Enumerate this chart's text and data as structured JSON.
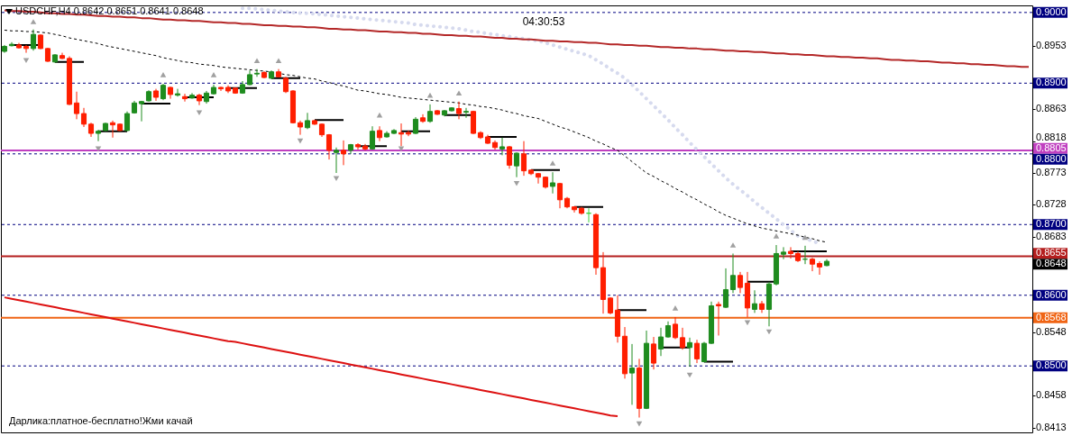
{
  "chart_data": {
    "type": "candlestick",
    "title": "USDCHF,H4 0.8642 0.8651 0.8641 0.8648",
    "categories": [
      null,
      null,
      null,
      null,
      null,
      null,
      null,
      null,
      null,
      null,
      null,
      null,
      null,
      null,
      null,
      null,
      null,
      null,
      null,
      null,
      null,
      null,
      null,
      null,
      null,
      null,
      null,
      null,
      null,
      null,
      null,
      null,
      null,
      null,
      null,
      null,
      null,
      null,
      null,
      null,
      null,
      null,
      null,
      null,
      null,
      null,
      null,
      null,
      null,
      null,
      null,
      null,
      null,
      null,
      null,
      null,
      null,
      null,
      null,
      null,
      null,
      null,
      null,
      null,
      null,
      null,
      null,
      null,
      null,
      null,
      null,
      null,
      null,
      null,
      null,
      null,
      null,
      null,
      null,
      null,
      null,
      null,
      null,
      null,
      null,
      null,
      null,
      null,
      null,
      null,
      null,
      null,
      null,
      null,
      null,
      null,
      null,
      null,
      null,
      null,
      null,
      null,
      null,
      null,
      null,
      null,
      null,
      null,
      null,
      null,
      null,
      null,
      null,
      null,
      null,
      null,
      null,
      null,
      null,
      null,
      null,
      null,
      null,
      null,
      null,
      null,
      null,
      null,
      null,
      null,
      null,
      null,
      null,
      null,
      null,
      null,
      null,
      null,
      null,
      null,
      null,
      null,
      null
    ],
    "ohlc": [
      [
        0.8945,
        0.8954,
        0.8943,
        0.8952
      ],
      [
        0.8953,
        0.8958,
        0.8952,
        0.8955
      ],
      [
        0.8954,
        0.8957,
        0.8949,
        0.895
      ],
      [
        0.8952,
        0.8954,
        0.8943,
        0.8949
      ],
      [
        0.8949,
        0.8976,
        0.8946,
        0.8969
      ],
      [
        0.8968,
        0.8969,
        0.8948,
        0.8949
      ],
      [
        0.8949,
        0.895,
        0.893,
        0.8931
      ],
      [
        0.893,
        0.8941,
        0.8929,
        0.894
      ],
      [
        0.8939,
        0.8943,
        0.8934,
        0.8935
      ],
      [
        0.8935,
        0.8938,
        0.8869,
        0.887
      ],
      [
        0.8872,
        0.8888,
        0.8849,
        0.8857
      ],
      [
        0.8857,
        0.8865,
        0.8838,
        0.8842
      ],
      [
        0.8842,
        0.8844,
        0.8824,
        0.8829
      ],
      [
        0.8829,
        0.8834,
        0.8818,
        0.8832
      ],
      [
        0.8833,
        0.8844,
        0.8832,
        0.8843
      ],
      [
        0.8844,
        0.8847,
        0.8823,
        0.8841
      ],
      [
        0.8842,
        0.8843,
        0.8832,
        0.8833
      ],
      [
        0.8833,
        0.886,
        0.8832,
        0.8857
      ],
      [
        0.8858,
        0.8875,
        0.8857,
        0.8872
      ],
      [
        0.8871,
        0.8875,
        0.8846,
        0.8874
      ],
      [
        0.8875,
        0.889,
        0.8874,
        0.8888
      ],
      [
        0.8889,
        0.8892,
        0.8875,
        0.888
      ],
      [
        0.8878,
        0.8899,
        0.8876,
        0.8897
      ],
      [
        0.8894,
        0.8895,
        0.8878,
        0.8884
      ],
      [
        0.8883,
        0.8892,
        0.8881,
        0.8885
      ],
      [
        0.8881,
        0.8885,
        0.8874,
        0.8878
      ],
      [
        0.8879,
        0.8886,
        0.8878,
        0.8883
      ],
      [
        0.8883,
        0.8885,
        0.8869,
        0.8875
      ],
      [
        0.8874,
        0.8889,
        0.8871,
        0.8886
      ],
      [
        0.8885,
        0.8898,
        0.8884,
        0.8894
      ],
      [
        0.8894,
        0.8895,
        0.8889,
        0.8892
      ],
      [
        0.8894,
        0.8897,
        0.8886,
        0.8889
      ],
      [
        0.8893,
        0.8894,
        0.8885,
        0.8886
      ],
      [
        0.8886,
        0.8903,
        0.8885,
        0.8898
      ],
      [
        0.8898,
        0.8918,
        0.8897,
        0.8912
      ],
      [
        0.8913,
        0.892,
        0.8909,
        0.8914
      ],
      [
        0.8915,
        0.8917,
        0.8907,
        0.8908
      ],
      [
        0.8907,
        0.8918,
        0.8906,
        0.8916
      ],
      [
        0.8916,
        0.892,
        0.8908,
        0.8909
      ],
      [
        0.8907,
        0.8909,
        0.8886,
        0.8888
      ],
      [
        0.8889,
        0.889,
        0.8843,
        0.8844
      ],
      [
        0.8844,
        0.8847,
        0.8827,
        0.8838
      ],
      [
        0.8837,
        0.8858,
        0.8835,
        0.8847
      ],
      [
        0.8847,
        0.8848,
        0.8841,
        0.8842
      ],
      [
        0.8842,
        0.8843,
        0.8824,
        0.8827
      ],
      [
        0.8827,
        0.8828,
        0.8792,
        0.8805
      ],
      [
        0.8802,
        0.8809,
        0.8773,
        0.8805
      ],
      [
        0.8805,
        0.8819,
        0.8784,
        0.88
      ],
      [
        0.8805,
        0.8814,
        0.88,
        0.8813
      ],
      [
        0.8813,
        0.8815,
        0.8806,
        0.881
      ],
      [
        0.8811,
        0.8814,
        0.8805,
        0.8807
      ],
      [
        0.8807,
        0.8839,
        0.8806,
        0.8832
      ],
      [
        0.8833,
        0.8839,
        0.8818,
        0.8823
      ],
      [
        0.8824,
        0.8832,
        0.8823,
        0.8829
      ],
      [
        0.8829,
        0.8835,
        0.8828,
        0.8833
      ],
      [
        0.883,
        0.8843,
        0.8811,
        0.8828
      ],
      [
        0.883,
        0.8833,
        0.8825,
        0.8828
      ],
      [
        0.8829,
        0.8852,
        0.8828,
        0.8849
      ],
      [
        0.8851,
        0.8856,
        0.8844,
        0.8846
      ],
      [
        0.8846,
        0.887,
        0.8844,
        0.886
      ],
      [
        0.8861,
        0.8862,
        0.8855,
        0.8856
      ],
      [
        0.8855,
        0.8862,
        0.8853,
        0.8861
      ],
      [
        0.8861,
        0.8866,
        0.886,
        0.8865
      ],
      [
        0.8864,
        0.8874,
        0.8849,
        0.8857
      ],
      [
        0.8859,
        0.8865,
        0.8851,
        0.886
      ],
      [
        0.886,
        0.8861,
        0.8828,
        0.8829
      ],
      [
        0.883,
        0.8832,
        0.8821,
        0.8823
      ],
      [
        0.8824,
        0.8827,
        0.8814,
        0.8815
      ],
      [
        0.8816,
        0.8819,
        0.8806,
        0.8809
      ],
      [
        0.8807,
        0.8823,
        0.8798,
        0.881
      ],
      [
        0.881,
        0.8811,
        0.8779,
        0.8784
      ],
      [
        0.8783,
        0.8802,
        0.8767,
        0.8801
      ],
      [
        0.88,
        0.8818,
        0.8769,
        0.8776
      ],
      [
        0.8777,
        0.8778,
        0.877,
        0.8772
      ],
      [
        0.8772,
        0.8773,
        0.8758,
        0.8767
      ],
      [
        0.8767,
        0.8768,
        0.8751,
        0.8753
      ],
      [
        0.8754,
        0.8774,
        0.8744,
        0.8759
      ],
      [
        0.8758,
        0.8759,
        0.8723,
        0.8735
      ],
      [
        0.8737,
        0.8739,
        0.8723,
        0.8725
      ],
      [
        0.8725,
        0.8726,
        0.8717,
        0.8721
      ],
      [
        0.8723,
        0.8725,
        0.8714,
        0.8716
      ],
      [
        0.8716,
        0.8723,
        0.8703,
        0.8716
      ],
      [
        0.8714,
        0.8716,
        0.8629,
        0.8639
      ],
      [
        0.8639,
        0.8661,
        0.8574,
        0.8594
      ],
      [
        0.8596,
        0.8597,
        0.8573,
        0.8575
      ],
      [
        0.8579,
        0.86,
        0.8533,
        0.8542
      ],
      [
        0.8542,
        0.8555,
        0.8482,
        0.8489
      ],
      [
        0.849,
        0.8531,
        0.8445,
        0.8497
      ],
      [
        0.8497,
        0.851,
        0.8427,
        0.844
      ],
      [
        0.844,
        0.855,
        0.8439,
        0.8532
      ],
      [
        0.8531,
        0.8541,
        0.8495,
        0.8504
      ],
      [
        0.8524,
        0.8554,
        0.8514,
        0.8541
      ],
      [
        0.8541,
        0.8563,
        0.854,
        0.8557
      ],
      [
        0.8559,
        0.8569,
        0.8538,
        0.854
      ],
      [
        0.854,
        0.8554,
        0.8523,
        0.8526
      ],
      [
        0.8526,
        0.854,
        0.8499,
        0.8533
      ],
      [
        0.8532,
        0.8537,
        0.8504,
        0.851
      ],
      [
        0.8506,
        0.8534,
        0.8505,
        0.8532
      ],
      [
        0.8532,
        0.8591,
        0.8531,
        0.8585
      ],
      [
        0.8587,
        0.8591,
        0.8543,
        0.8585
      ],
      [
        0.8583,
        0.8638,
        0.8582,
        0.8608
      ],
      [
        0.8608,
        0.8659,
        0.8603,
        0.8628
      ],
      [
        0.8628,
        0.8633,
        0.8603,
        0.8611
      ],
      [
        0.8617,
        0.8633,
        0.8569,
        0.8582
      ],
      [
        0.858,
        0.8607,
        0.8575,
        0.8588
      ],
      [
        0.8588,
        0.8592,
        0.8575,
        0.858
      ],
      [
        0.858,
        0.8619,
        0.8556,
        0.8616
      ],
      [
        0.8616,
        0.8671,
        0.8614,
        0.8659
      ],
      [
        0.8658,
        0.8668,
        0.8651,
        0.8661
      ],
      [
        0.8662,
        0.8668,
        0.8652,
        0.8659
      ],
      [
        0.8659,
        0.8662,
        0.8647,
        0.8649
      ],
      [
        0.8651,
        0.867,
        0.8644,
        0.8651
      ],
      [
        0.8651,
        0.8653,
        0.8634,
        0.8644
      ],
      [
        0.8645,
        0.8648,
        0.8629,
        0.864
      ],
      [
        0.8642,
        0.8651,
        0.8641,
        0.8648
      ],
      null,
      null,
      null,
      null,
      null,
      null,
      null,
      null,
      null,
      null,
      null,
      null,
      null,
      null,
      null,
      null,
      null,
      null,
      null,
      null,
      null,
      null,
      null,
      null,
      null,
      null,
      null,
      null
    ],
    "colors": [
      "#1e8c1e",
      "#1e8c1e",
      "#ff1e00",
      "#ff1e00",
      "#1e8c1e",
      "#ff1e00",
      "#ff1e00",
      "#1e8c1e",
      "#ff1e00",
      "#ff1e00",
      "#ff1e00",
      "#ff1e00",
      "#ff1e00",
      "#1e8c1e",
      "#1e8c1e",
      "#ff1e00",
      "#ff1e00",
      "#1e8c1e",
      "#1e8c1e",
      "#1e8c1e",
      "#1e8c1e",
      "#ff1e00",
      "#1e8c1e",
      "#ff1e00",
      "#1e8c1e",
      "#ff1e00",
      "#1e8c1e",
      "#ff1e00",
      "#1e8c1e",
      "#1e8c1e",
      "#ff1e00",
      "#ff1e00",
      "#ff1e00",
      "#1e8c1e",
      "#1e8c1e",
      "#1e8c1e",
      "#ff1e00",
      "#1e8c1e",
      "#ff1e00",
      "#ff1e00",
      "#ff1e00",
      "#ff1e00",
      "#1e8c1e",
      "#ff1e00",
      "#ff1e00",
      "#ff1e00",
      "#1e8c1e",
      "#ff1e00",
      "#1e8c1e",
      "#ff1e00",
      "#ff1e00",
      "#1e8c1e",
      "#ff1e00",
      "#1e8c1e",
      "#1e8c1e",
      "#ff1e00",
      "#ff1e00",
      "#1e8c1e",
      "#ff1e00",
      "#1e8c1e",
      "#ff1e00",
      "#1e8c1e",
      "#1e8c1e",
      "#ff1e00",
      "#1e8c1e",
      "#ff1e00",
      "#ff1e00",
      "#ff1e00",
      "#ff1e00",
      "#1e8c1e",
      "#ff1e00",
      "#1e8c1e",
      "#ff1e00",
      "#ff1e00",
      "#ff1e00",
      "#ff1e00",
      "#1e8c1e",
      "#ff1e00",
      "#ff1e00",
      "#ff1e00",
      "#ff1e00",
      "#3cd23c",
      "#ff1e00",
      "#ff1e00",
      "#ff1e00",
      "#ff1e00",
      "#ff1e00",
      "#1e8c1e",
      "#ff1e00",
      "#1e8c1e",
      "#ff1e00",
      "#1e8c1e",
      "#1e8c1e",
      "#ff1e00",
      "#ff1e00",
      "#1e8c1e",
      "#ff1e00",
      "#1e8c1e",
      "#1e8c1e",
      "#ff1e00",
      "#1e8c1e",
      "#1e8c1e",
      "#ff1e00",
      "#ff1e00",
      "#1e8c1e",
      "#ff1e00",
      "#1e8c1e",
      "#1e8c1e",
      "#1e8c1e",
      "#ff1e00",
      "#ff1e00",
      "#1e8c1e",
      "#ff1e00",
      "#ff1e00",
      "#1e8c1e",
      null,
      null,
      null,
      null,
      null,
      null,
      null,
      null,
      null,
      null,
      null,
      null,
      null,
      null,
      null,
      null,
      null,
      null,
      null,
      null,
      null,
      null,
      null,
      null,
      null,
      null,
      null,
      null
    ],
    "series": [
      {
        "type": "line",
        "color": "#d6daee",
        "line_style": "dotted",
        "values": [
          null,
          null,
          null,
          null,
          null,
          null,
          null,
          null,
          null,
          null,
          null,
          null,
          null,
          null,
          null,
          null,
          null,
          null,
          null,
          null,
          null,
          null,
          null,
          null,
          null,
          null,
          null,
          null,
          null,
          null,
          null,
          null,
          null,
          0.9006,
          0.9006,
          0.9005,
          0.9004,
          0.9003,
          0.9002,
          0.9001,
          0.9,
          0.8999,
          0.8999,
          0.8998,
          0.8997,
          0.8996,
          0.8995,
          0.8994,
          0.8993,
          0.8992,
          0.8991,
          0.899,
          0.8989,
          0.8988,
          0.8987,
          0.8986,
          0.8985,
          0.8983,
          0.8982,
          0.8981,
          0.898,
          0.8979,
          0.8978,
          0.8977,
          0.8975,
          0.8973,
          0.8972,
          0.897,
          0.8969,
          0.8967,
          0.8966,
          0.8964,
          0.8963,
          0.8961,
          0.896,
          0.8957,
          0.8954,
          0.8951,
          0.8948,
          0.8945,
          0.8942,
          0.8939,
          0.8933,
          0.8927,
          0.892,
          0.8914,
          0.8907,
          0.8898,
          0.8888,
          0.8878,
          0.8868,
          0.8858,
          0.8848,
          0.8837,
          0.8827,
          0.8816,
          0.8806,
          0.8796,
          0.8786,
          0.8776,
          0.8766,
          0.8757,
          0.8749,
          0.8741,
          0.8732,
          0.8724,
          0.8716,
          0.8708,
          0.87,
          0.8692,
          0.8684,
          0.868,
          0.8677,
          0.8673,
          null,
          null,
          null,
          null,
          null,
          null,
          null,
          null,
          null,
          null,
          null,
          null,
          null,
          null,
          null,
          null,
          null,
          null,
          null,
          null,
          null,
          null,
          null,
          null,
          null,
          null,
          null,
          null,
          null
        ]
      },
      {
        "type": "line",
        "color": "#000000",
        "line_style": "dashed",
        "values": [
          0.8975,
          0.8974,
          0.8974,
          0.8973,
          0.8973,
          0.8972,
          0.8971,
          0.8969,
          0.8967,
          0.8964,
          0.8962,
          0.896,
          0.8958,
          0.8956,
          0.8953,
          0.8951,
          0.8949,
          0.8947,
          0.8945,
          0.8943,
          0.8941,
          0.8939,
          0.8936,
          0.8934,
          0.8932,
          0.893,
          0.8929,
          0.8927,
          0.8926,
          0.8925,
          0.8923,
          0.8922,
          0.8921,
          0.892,
          0.8919,
          0.8918,
          0.8917,
          0.8916,
          0.8914,
          0.8912,
          0.8911,
          0.8909,
          0.8907,
          0.8906,
          0.8903,
          0.8901,
          0.8898,
          0.8896,
          0.8893,
          0.889,
          0.8889,
          0.8887,
          0.8885,
          0.8884,
          0.8882,
          0.888,
          0.8879,
          0.8878,
          0.8877,
          0.8876,
          0.8875,
          0.8874,
          0.8873,
          0.8872,
          0.887,
          0.8869,
          0.8867,
          0.8866,
          0.8864,
          0.8862,
          0.8859,
          0.8857,
          0.8854,
          0.8852,
          0.885,
          0.8846,
          0.8842,
          0.8838,
          0.8835,
          0.8831,
          0.8827,
          0.8823,
          0.8818,
          0.8814,
          0.8809,
          0.8805,
          0.8797,
          0.8789,
          0.8781,
          0.8773,
          0.8768,
          0.8762,
          0.8757,
          0.8751,
          0.8746,
          0.874,
          0.8735,
          0.8729,
          0.8724,
          0.8718,
          0.8713,
          0.8709,
          0.8705,
          0.8701,
          0.8698,
          0.8695,
          0.8693,
          0.8691,
          0.8689,
          0.8687,
          0.8685,
          0.8682,
          0.868,
          0.8677,
          0.8675,
          null,
          null,
          null,
          null,
          null,
          null,
          null,
          null,
          null,
          null,
          null,
          null,
          null,
          null,
          null,
          null,
          null,
          null,
          null,
          null,
          null,
          null,
          null,
          null,
          null,
          null,
          null,
          null
        ]
      },
      {
        "type": "line",
        "color": "#b42828",
        "values": [
          0.9003,
          0.9002,
          0.9002,
          0.9001,
          0.9001,
          0.9,
          0.8999,
          0.8999,
          0.8998,
          0.8998,
          0.8997,
          0.8997,
          0.8996,
          0.8995,
          0.8995,
          0.8994,
          0.8994,
          0.8993,
          0.8993,
          0.8992,
          0.8992,
          0.8991,
          0.899,
          0.899,
          0.8989,
          0.8989,
          0.8988,
          0.8988,
          0.8987,
          0.8986,
          0.8986,
          0.8985,
          0.8985,
          0.8984,
          0.8984,
          0.8983,
          0.8982,
          0.8982,
          0.8981,
          0.8981,
          0.898,
          0.898,
          0.8979,
          0.8979,
          0.8978,
          0.8977,
          0.8977,
          0.8976,
          0.8976,
          0.8975,
          0.8975,
          0.8974,
          0.8973,
          0.8973,
          0.8972,
          0.8972,
          0.8971,
          0.8971,
          0.897,
          0.897,
          0.8969,
          0.8968,
          0.8968,
          0.8967,
          0.8967,
          0.8966,
          0.8966,
          0.8965,
          0.8964,
          0.8964,
          0.8963,
          0.8963,
          0.8962,
          0.8962,
          0.8961,
          0.896,
          0.896,
          0.8959,
          0.8959,
          0.8958,
          0.8958,
          0.8957,
          0.8957,
          0.8956,
          0.8955,
          0.8955,
          0.8954,
          0.8954,
          0.8953,
          0.8953,
          0.8952,
          0.8951,
          0.8951,
          0.895,
          0.895,
          0.8949,
          0.8949,
          0.8948,
          0.8948,
          0.8947,
          0.8946,
          0.8946,
          0.8945,
          0.8945,
          0.8944,
          0.8944,
          0.8943,
          0.8942,
          0.8942,
          0.8941,
          0.8941,
          0.894,
          0.894,
          0.8939,
          0.8938,
          0.8938,
          0.8937,
          0.8937,
          0.8936,
          0.8936,
          0.8935,
          0.8935,
          0.8934,
          0.8933,
          0.8933,
          0.8932,
          0.8932,
          0.8931,
          0.8931,
          0.893,
          0.8929,
          0.8929,
          0.8928,
          0.8928,
          0.8927,
          0.8927,
          0.8926,
          0.8926,
          0.8925,
          0.8924,
          0.8924,
          0.8923,
          0.8923
        ]
      },
      {
        "type": "line",
        "color": "#dd1111",
        "values": [
          0.8597,
          0.8595,
          0.8593,
          0.8591,
          0.8589,
          0.8587,
          0.8585,
          0.8583,
          0.8581,
          0.8579,
          0.8577,
          0.8575,
          0.8573,
          0.8571,
          0.8569,
          0.8567,
          0.8565,
          0.8563,
          0.8561,
          0.8559,
          0.8557,
          0.8555,
          0.8553,
          0.8551,
          0.8549,
          0.8547,
          0.8545,
          0.8543,
          0.8541,
          0.8539,
          0.8537,
          0.8535,
          0.8534,
          0.8532,
          0.853,
          0.8528,
          0.8526,
          0.8524,
          0.8522,
          0.852,
          0.8518,
          0.8516,
          0.8514,
          0.8512,
          0.851,
          0.8508,
          0.8506,
          0.8504,
          0.8502,
          0.85,
          0.8498,
          0.8496,
          0.8494,
          0.8492,
          0.849,
          0.8488,
          0.8486,
          0.8484,
          0.8482,
          0.848,
          0.8478,
          0.8476,
          0.8474,
          0.8472,
          0.847,
          0.8468,
          0.8466,
          0.8464,
          0.8462,
          0.846,
          0.8458,
          0.8456,
          0.8454,
          0.8452,
          0.845,
          0.8448,
          0.8446,
          0.8444,
          0.8442,
          0.844,
          0.8438,
          0.8436,
          0.8434,
          0.8432,
          0.843,
          0.8429,
          null,
          null,
          null,
          null,
          null,
          null,
          null,
          null,
          null,
          null,
          null,
          null,
          null,
          null,
          null,
          null,
          null,
          null,
          null,
          null,
          null,
          null,
          null,
          null,
          null,
          null,
          null,
          null,
          null,
          null,
          null,
          null,
          null,
          null,
          null,
          null,
          null,
          null,
          null,
          null,
          null,
          null,
          null,
          null,
          null,
          null,
          null,
          null,
          null,
          null,
          null,
          null,
          null,
          null,
          null,
          null,
          null
        ]
      },
      {
        "type": "line",
        "color": "#000000",
        "values": [
          null,
          0.8954,
          0.8954,
          0.8954,
          0.8954,
          0.8954,
          null,
          0.893,
          0.893,
          0.893,
          0.893,
          0.893,
          null,
          0.8832,
          0.8832,
          0.8832,
          0.8832,
          0.8832,
          null,
          0.8871,
          0.8871,
          0.8871,
          0.8871,
          0.8871,
          null,
          0.888,
          0.888,
          0.888,
          0.888,
          0.888,
          null,
          0.8893,
          0.8893,
          0.8893,
          0.8893,
          0.8893,
          null,
          0.8907,
          0.8907,
          0.8907,
          0.8907,
          0.8907,
          null,
          0.8848,
          0.8848,
          0.8848,
          0.8848,
          0.8848,
          null,
          0.8811,
          0.8811,
          0.8811,
          0.8811,
          0.8811,
          null,
          0.8832,
          0.8832,
          0.8832,
          0.8832,
          0.8832,
          null,
          0.8855,
          0.8855,
          0.8855,
          0.8855,
          0.8855,
          null,
          0.8824,
          0.8824,
          0.8824,
          0.8824,
          0.8824,
          null,
          0.8777,
          0.8777,
          0.8777,
          0.8777,
          0.8777,
          null,
          0.8725,
          0.8725,
          0.8725,
          0.8725,
          0.8725,
          null,
          0.8579,
          0.8579,
          0.8579,
          0.8579,
          0.8579,
          null,
          0.8526,
          0.8526,
          0.8526,
          0.8526,
          0.8526,
          null,
          0.8506,
          0.8506,
          0.8506,
          0.8506,
          0.8506,
          null,
          0.8619,
          0.8619,
          0.8619,
          0.8619,
          0.8619,
          null,
          0.8662,
          0.8662,
          0.8662,
          0.8662,
          0.8662,
          0.8662,
          null,
          null,
          null,
          null,
          null,
          null,
          null,
          null,
          null,
          null,
          null,
          null,
          null,
          null,
          null,
          null,
          null,
          null,
          null,
          null,
          null,
          null,
          null,
          null,
          null,
          null,
          null,
          null
        ]
      },
      {
        "type": "scatter",
        "color": "#a0a0a0",
        "marker": "triangle",
        "values": [
          null,
          null,
          null,
          0.8932,
          0.8987,
          null,
          null,
          null,
          null,
          null,
          null,
          null,
          null,
          0.8807,
          null,
          null,
          null,
          null,
          null,
          null,
          null,
          null,
          0.8912,
          null,
          null,
          null,
          null,
          0.8858,
          null,
          0.8912,
          null,
          null,
          null,
          null,
          null,
          0.8932,
          null,
          null,
          0.8932,
          null,
          null,
          0.8818,
          null,
          null,
          null,
          null,
          0.8765,
          null,
          null,
          null,
          null,
          null,
          0.8855,
          null,
          null,
          0.8807,
          null,
          null,
          null,
          0.8883,
          null,
          null,
          null,
          0.8886,
          null,
          null,
          null,
          null,
          null,
          null,
          null,
          0.8758,
          null,
          null,
          null,
          null,
          0.8787,
          null,
          null,
          null,
          null,
          null,
          null,
          null,
          null,
          null,
          null,
          null,
          0.8418,
          null,
          null,
          null,
          null,
          0.8582,
          null,
          0.8487,
          null,
          null,
          null,
          null,
          null,
          0.8671,
          null,
          0.8561,
          null,
          null,
          0.8548,
          0.8684,
          null,
          null,
          null,
          0.8682,
          null,
          null,
          null,
          null,
          null,
          null,
          null,
          null,
          null,
          null,
          null,
          null,
          null,
          null,
          null,
          null,
          null,
          null,
          null,
          null,
          null,
          null,
          null,
          null,
          null,
          null,
          null,
          null,
          null,
          null,
          null
        ]
      }
    ],
    "ref_lines": [
      {
        "axis": "y",
        "value": 0.9,
        "label": "0.9000",
        "color": "#000080",
        "line_style": "dashed"
      },
      {
        "axis": "y",
        "value": 0.89,
        "label": "0.8900",
        "color": "#000080",
        "line_style": "dashed"
      },
      {
        "axis": "y",
        "value": 0.88,
        "label": "0.8800",
        "color": "#000080",
        "line_style": "dashed"
      },
      {
        "axis": "y",
        "value": 0.87,
        "label": "0.8700",
        "color": "#000080",
        "line_style": "dashed"
      },
      {
        "axis": "y",
        "value": 0.86,
        "label": "0.8600",
        "color": "#000080",
        "line_style": "dashed"
      },
      {
        "axis": "y",
        "value": 0.85,
        "label": "0.8500",
        "color": "#000080",
        "line_style": "dashed"
      },
      {
        "axis": "y",
        "value": 0.8805,
        "label": "0.8805",
        "color": "#c040c0"
      },
      {
        "axis": "y",
        "value": 0.8655,
        "label": "0.8655",
        "color": "#b41e1e"
      },
      {
        "axis": "y",
        "value": 0.8568,
        "label": "0.8568",
        "color": "#f06414"
      }
    ],
    "annotations": [
      "04:30:53",
      "Дарлика:платное-бесплатно!Жми качай",
      "0.8648"
    ],
    "ylim": [
      0.8406,
      0.901
    ],
    "yticks": [
      0.8953,
      0.8863,
      0.8818,
      0.8773,
      0.8728,
      0.8683,
      0.8548,
      0.8458,
      0.8413
    ],
    "tick_labels": "y"
  }
}
